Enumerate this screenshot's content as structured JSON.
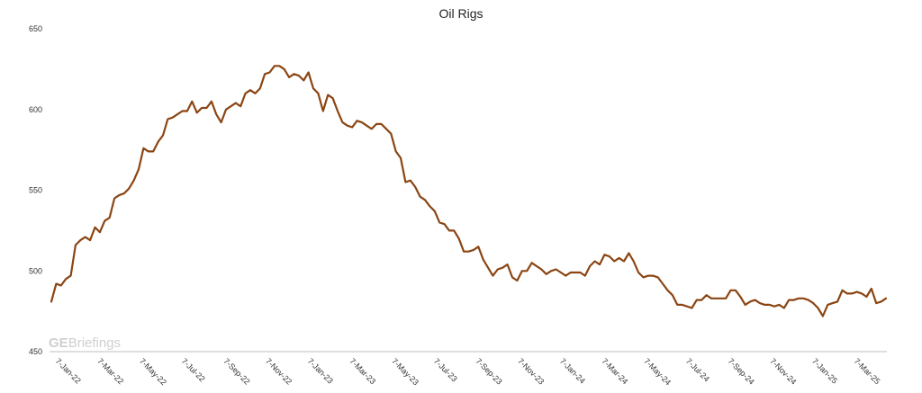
{
  "chart_data": {
    "type": "line",
    "title": "Oil Rigs",
    "xlabel": "",
    "ylabel": "",
    "ylim": [
      450,
      650
    ],
    "yticks": [
      450,
      500,
      550,
      600,
      650
    ],
    "x_tick_labels": [
      "7-Jan-22",
      "7-Mar-22",
      "7-May-22",
      "7-Jul-22",
      "7-Sep-22",
      "7-Nov-22",
      "7-Jan-23",
      "7-Mar-23",
      "7-May-23",
      "7-Jul-23",
      "7-Sep-23",
      "7-Nov-23",
      "7-Jan-24",
      "7-Mar-24",
      "7-May-24",
      "7-Jul-24",
      "7-Sep-24",
      "7-Nov-24",
      "7-Jan-25",
      "7-Mar-25"
    ],
    "grid": false,
    "legend": "none",
    "colors": {
      "line": "#8B4513",
      "axis": "#bfbfbf"
    },
    "series": [
      {
        "values": [
          481,
          492,
          491,
          495,
          497,
          516,
          519,
          521,
          519,
          527,
          524,
          531,
          533,
          545,
          547,
          548,
          551,
          556,
          563,
          576,
          574,
          574,
          580,
          584,
          594,
          595,
          597,
          599,
          599,
          605,
          598,
          601,
          601,
          605,
          597,
          592,
          600,
          602,
          604,
          602,
          610,
          612,
          610,
          613,
          622,
          623,
          627,
          627,
          625,
          620,
          622,
          621,
          618,
          623,
          613,
          610,
          599,
          609,
          607,
          599,
          592,
          590,
          589,
          593,
          592,
          590,
          588,
          591,
          591,
          588,
          585,
          574,
          570,
          555,
          556,
          552,
          546,
          544,
          540,
          537,
          530,
          529,
          525,
          525,
          520,
          512,
          512,
          513,
          515,
          507,
          502,
          497,
          501,
          502,
          504,
          496,
          494,
          500,
          500,
          505,
          503,
          501,
          498,
          500,
          501,
          499,
          497,
          499,
          499,
          499,
          497,
          503,
          506,
          504,
          510,
          509,
          506,
          508,
          506,
          511,
          506,
          499,
          496,
          497,
          497,
          496,
          492,
          488,
          485,
          479,
          479,
          478,
          477,
          482,
          482,
          485,
          483,
          483,
          483,
          483,
          488,
          488,
          484,
          479,
          481,
          482,
          480,
          479,
          479,
          478,
          479,
          477,
          482,
          482,
          483,
          483,
          482,
          480,
          477,
          472,
          479,
          480,
          481,
          488,
          486,
          486,
          487,
          486,
          484,
          489,
          480,
          481,
          483
        ]
      }
    ]
  },
  "watermark": {
    "bold": "GE",
    "regular": "Briefings"
  }
}
